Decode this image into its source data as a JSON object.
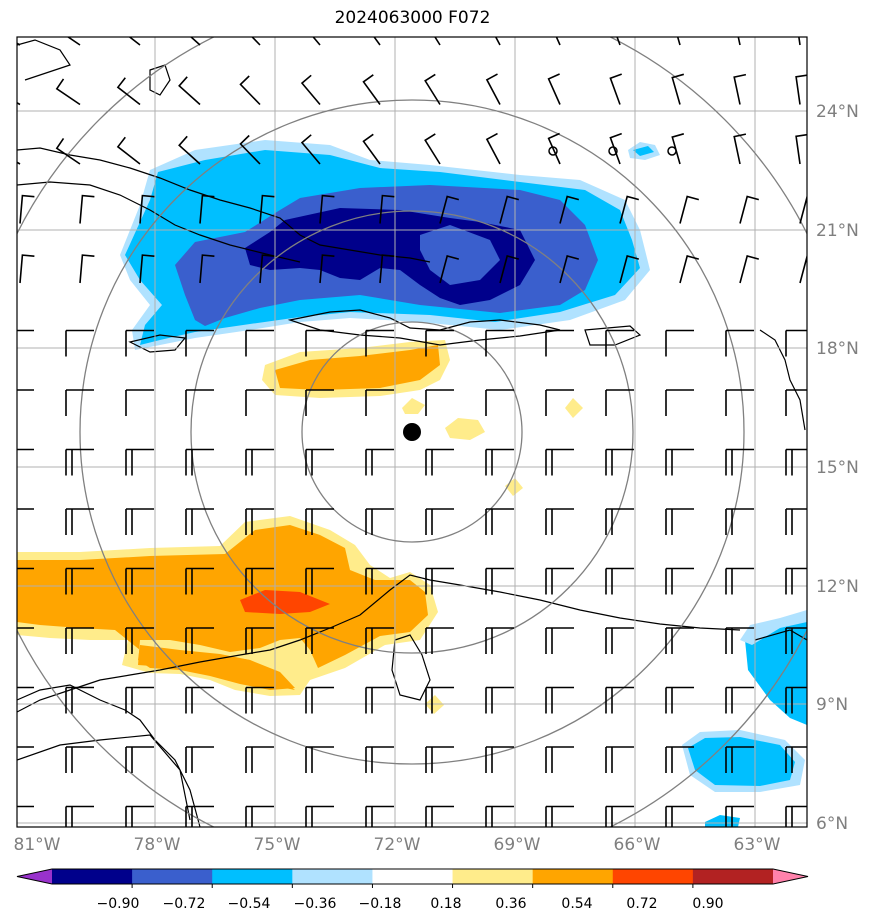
{
  "title": "2024063000 F072",
  "map": {
    "lon_range": [
      -81.0,
      -61.0
    ],
    "lat_range": [
      6.0,
      26.0
    ],
    "lon_ticks": [
      {
        "value": -81,
        "label": "81°W"
      },
      {
        "value": -78,
        "label": "78°W"
      },
      {
        "value": -75,
        "label": "75°W"
      },
      {
        "value": -72,
        "label": "72°W"
      },
      {
        "value": -69,
        "label": "69°W"
      },
      {
        "value": -66,
        "label": "66°W"
      },
      {
        "value": -63,
        "label": "63°W"
      }
    ],
    "lat_ticks": [
      {
        "value": 24,
        "label": "24°N"
      },
      {
        "value": 21,
        "label": "21°N"
      },
      {
        "value": 18,
        "label": "18°N"
      },
      {
        "value": 15,
        "label": "15°N"
      },
      {
        "value": 12,
        "label": "12°N"
      },
      {
        "value": 9,
        "label": "9°N"
      },
      {
        "value": 6,
        "label": "6°N"
      }
    ],
    "gridlines": true,
    "center_marker": {
      "lon": -71.8,
      "lat": 15.9
    },
    "range_rings_deg": [
      2.8,
      5.6,
      8.4,
      11.2
    ],
    "colors": {
      "land_outline": "#000000",
      "grid": "#b0b0b0",
      "rings": "#808080",
      "tick_labels": "#7f7f7f"
    }
  },
  "colorbar": {
    "boundaries": [
      "−0.90",
      "−0.72",
      "−0.54",
      "−0.36",
      "−0.18",
      "0.18",
      "0.36",
      "0.54",
      "0.72",
      "0.90"
    ],
    "colors": [
      "#9932cc",
      "#00008b",
      "#3a5fcd",
      "#00bfff",
      "#b0e2ff",
      "#ffffff",
      "#ffec8b",
      "#ffa500",
      "#ff4500",
      "#b22222",
      "#ff82ab"
    ],
    "extend": "both"
  }
}
